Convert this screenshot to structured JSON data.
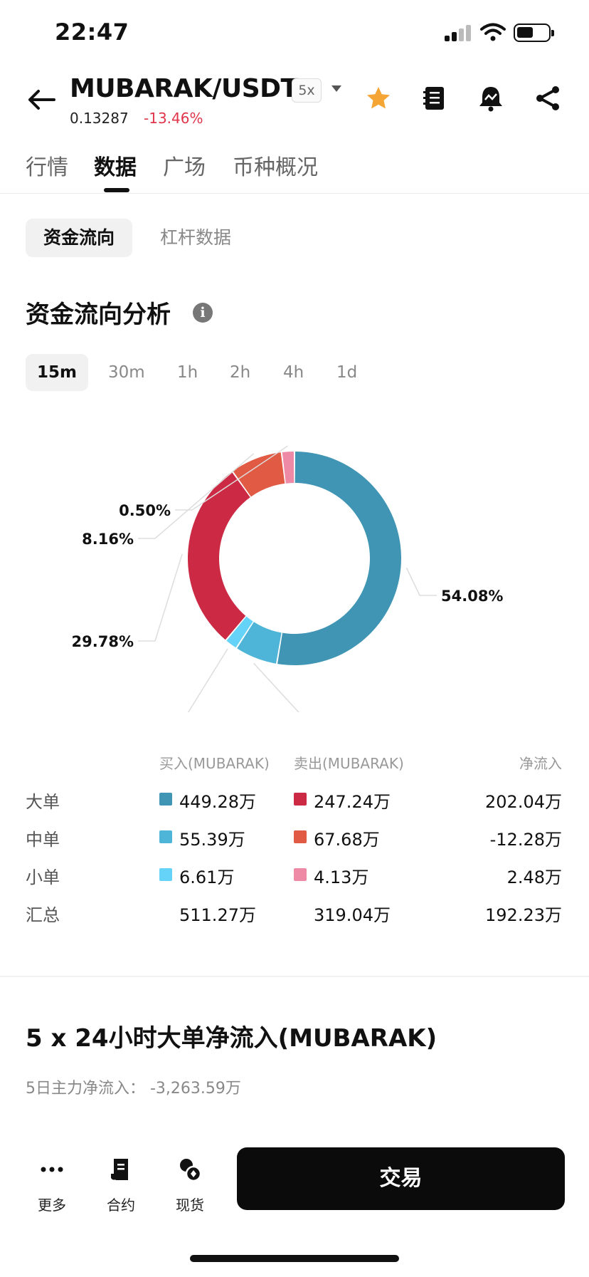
{
  "status_bar": {
    "time": "22:47"
  },
  "header": {
    "pair": "MUBARAK/USDT",
    "leverage": "5x",
    "price": "0.13287",
    "change": "-13.46%"
  },
  "tabs": [
    "行情",
    "数据",
    "广场",
    "币种概况"
  ],
  "subtabs": [
    "资金流向",
    "杠杆数据"
  ],
  "section_title": "资金流向分析",
  "info_glyph": "i",
  "timeframes": [
    "15m",
    "30m",
    "1h",
    "2h",
    "4h",
    "1d"
  ],
  "chart_data": {
    "type": "pie",
    "style": "donut",
    "slices": [
      {
        "label": "54.08%",
        "value": 54.08,
        "color": "#3f95b3"
      },
      {
        "label": "6.68%",
        "value": 6.68,
        "color": "#4fb5d8"
      },
      {
        "label": "0.80%",
        "value": 0.8,
        "color": "#65d3f7"
      },
      {
        "label": "29.78%",
        "value": 29.78,
        "color": "#cc2a44"
      },
      {
        "label": "8.16%",
        "value": 8.16,
        "color": "#e05a44"
      },
      {
        "label": "0.50%",
        "value": 0.5,
        "color": "#ee8aa6"
      }
    ]
  },
  "table": {
    "headers": {
      "buy": "买入(MUBARAK)",
      "sell": "卖出(MUBARAK)",
      "net": "净流入"
    },
    "rows": [
      {
        "label": "大单",
        "buy": "449.28万",
        "sell": "247.24万",
        "net": "202.04万",
        "buy_color": "#3f95b3",
        "sell_color": "#cc2a44"
      },
      {
        "label": "中单",
        "buy": "55.39万",
        "sell": "67.68万",
        "net": "-12.28万",
        "buy_color": "#4fb5d8",
        "sell_color": "#e05a44"
      },
      {
        "label": "小单",
        "buy": "6.61万",
        "sell": "4.13万",
        "net": "2.48万",
        "buy_color": "#65d3f7",
        "sell_color": "#ee8aa6"
      }
    ],
    "total": {
      "label": "汇总",
      "buy": "511.27万",
      "sell": "319.04万",
      "net": "192.23万"
    }
  },
  "large_orders": {
    "title": "5 x 24小时大单净流入(MUBARAK)",
    "subtitle": "5日主力净流入： -3,263.59万"
  },
  "bottom_nav": {
    "more": "更多",
    "futures": "合约",
    "spot": "现货",
    "trade": "交易"
  }
}
